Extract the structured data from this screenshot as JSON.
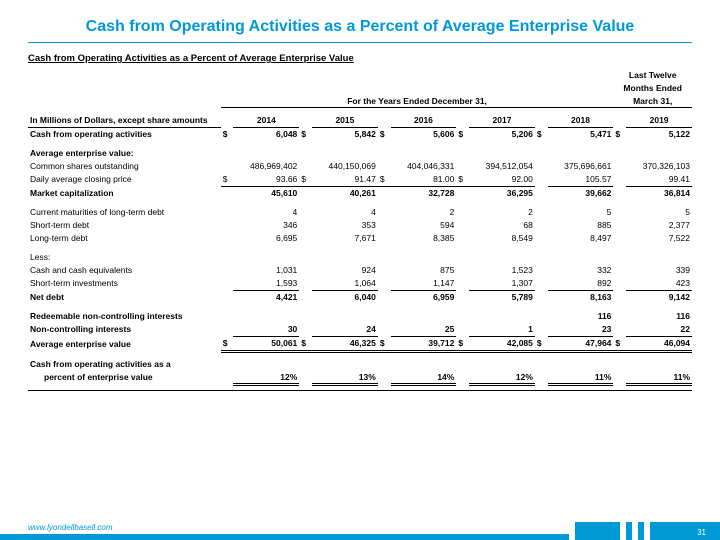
{
  "title": "Cash from Operating Activities as a Percent of Average Enterprise Value",
  "subtitle": "Cash from Operating Activities as a Percent of Average Enterprise Value",
  "period_header": "For the Years Ended December 31,",
  "last_twelve_l1": "Last Twelve",
  "last_twelve_l2": "Months Ended",
  "last_twelve_l3": "March 31,",
  "col_label": "In Millions of Dollars, except share amounts",
  "years": {
    "y14": "2014",
    "y15": "2015",
    "y16": "2016",
    "y17": "2017",
    "y18": "2018",
    "y19": "2019"
  },
  "rows": {
    "cfo": {
      "label": "Cash from operating activities",
      "v": [
        "6,048",
        "5,842",
        "5,606",
        "5,206",
        "5,471",
        "5,122"
      ],
      "dollar": true
    },
    "aev_hdr": "Average enterprise value:",
    "shares": {
      "label": "Common shares outstanding",
      "v": [
        "486,969,402",
        "440,150,069",
        "404,046,331",
        "394,512,054",
        "375,696,661",
        "370,326,103"
      ]
    },
    "price": {
      "label": "Daily average closing price",
      "v": [
        "93.66",
        "91.47",
        "81.00",
        "92.00",
        "105.57",
        "99.41"
      ],
      "dollar": true
    },
    "mcap": {
      "label": "Market capitalization",
      "v": [
        "45,610",
        "40,261",
        "32,728",
        "36,295",
        "39,662",
        "36,814"
      ]
    },
    "curmat": {
      "label": "Current maturities of long-term debt",
      "v": [
        "4",
        "4",
        "2",
        "2",
        "5",
        "5"
      ]
    },
    "std": {
      "label": "Short-term debt",
      "v": [
        "346",
        "353",
        "594",
        "68",
        "885",
        "2,377"
      ]
    },
    "ltd": {
      "label": "Long-term debt",
      "v": [
        "6,695",
        "7,671",
        "8,385",
        "8,549",
        "8,497",
        "7,522"
      ]
    },
    "less": "Less:",
    "cash": {
      "label": "Cash and cash equivalents",
      "v": [
        "1,031",
        "924",
        "875",
        "1,523",
        "332",
        "339"
      ]
    },
    "sti": {
      "label": "Short-term investments",
      "v": [
        "1,593",
        "1,064",
        "1,147",
        "1,307",
        "892",
        "423"
      ]
    },
    "netdebt": {
      "label": "Net debt",
      "v": [
        "4,421",
        "6,040",
        "6,959",
        "5,789",
        "8,163",
        "9,142"
      ]
    },
    "rnci": {
      "label": "Redeemable non-controlling interests",
      "v": [
        "",
        "",
        "",
        "",
        "116",
        "116"
      ]
    },
    "nci": {
      "label": "Non-controlling interests",
      "v": [
        "30",
        "24",
        "25",
        "1",
        "23",
        "22"
      ]
    },
    "aev": {
      "label": "Average enterprise value",
      "v": [
        "50,061",
        "46,325",
        "39,712",
        "42,085",
        "47,964",
        "46,094"
      ],
      "dollar": true
    },
    "pct_l1": "Cash from operating activities as a",
    "pct_l2": "percent of enterprise value",
    "pct": {
      "v": [
        "12%",
        "13%",
        "14%",
        "12%",
        "11%",
        "11%"
      ]
    }
  },
  "footer_url": "www.lyondellbasell.com",
  "page_num": "31"
}
